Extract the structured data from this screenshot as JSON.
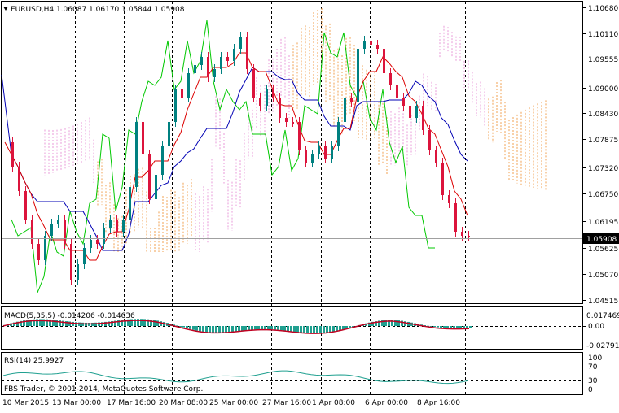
{
  "window": {
    "symbol_line": "EURUSD,H4  1.06087 1.06170 1.05844 1.05908",
    "current_price_label": "1.05908"
  },
  "price_axis": {
    "ticks": [
      "1.10680",
      "1.10110",
      "1.09555",
      "1.09000",
      "1.08430",
      "1.07875",
      "1.07320",
      "1.06750",
      "1.06195",
      "1.05625",
      "1.05070",
      "1.04515"
    ],
    "current_price": 1.05908
  },
  "macd": {
    "header": "MACD(5,35,5) -0.014206 -0.014636",
    "ticks": [
      "0.017469",
      "0.00",
      "-0.027913"
    ]
  },
  "rsi": {
    "header": "RSI(14) 25.9927",
    "ticks": [
      "100",
      "70",
      "30",
      "0"
    ],
    "copyright": "FBS Trader, © 2001-2014, MetaQuotes Software Corp."
  },
  "time_axis": {
    "labels": [
      "10 Mar 2015",
      "13 Mar 00:00",
      "17 Mar 16:00",
      "20 Mar 08:00",
      "25 Mar 00:00",
      "27 Mar 16:00",
      "1 Apr 08:00",
      "6 Apr 00:00",
      "8 Apr 16:00"
    ]
  },
  "colors": {
    "bull_candle": "#008080",
    "bear_candle": "#dc143c",
    "tenkan": "#dc0000",
    "kijun": "#0000b4",
    "chikou": "#00c800",
    "cloud_a": "#e89ad8",
    "cloud_b": "#f0a050",
    "macd_hist": "#20a090",
    "macd_signal": "#c00020",
    "rsi_line": "#20a090",
    "grid": "#000000"
  }
}
